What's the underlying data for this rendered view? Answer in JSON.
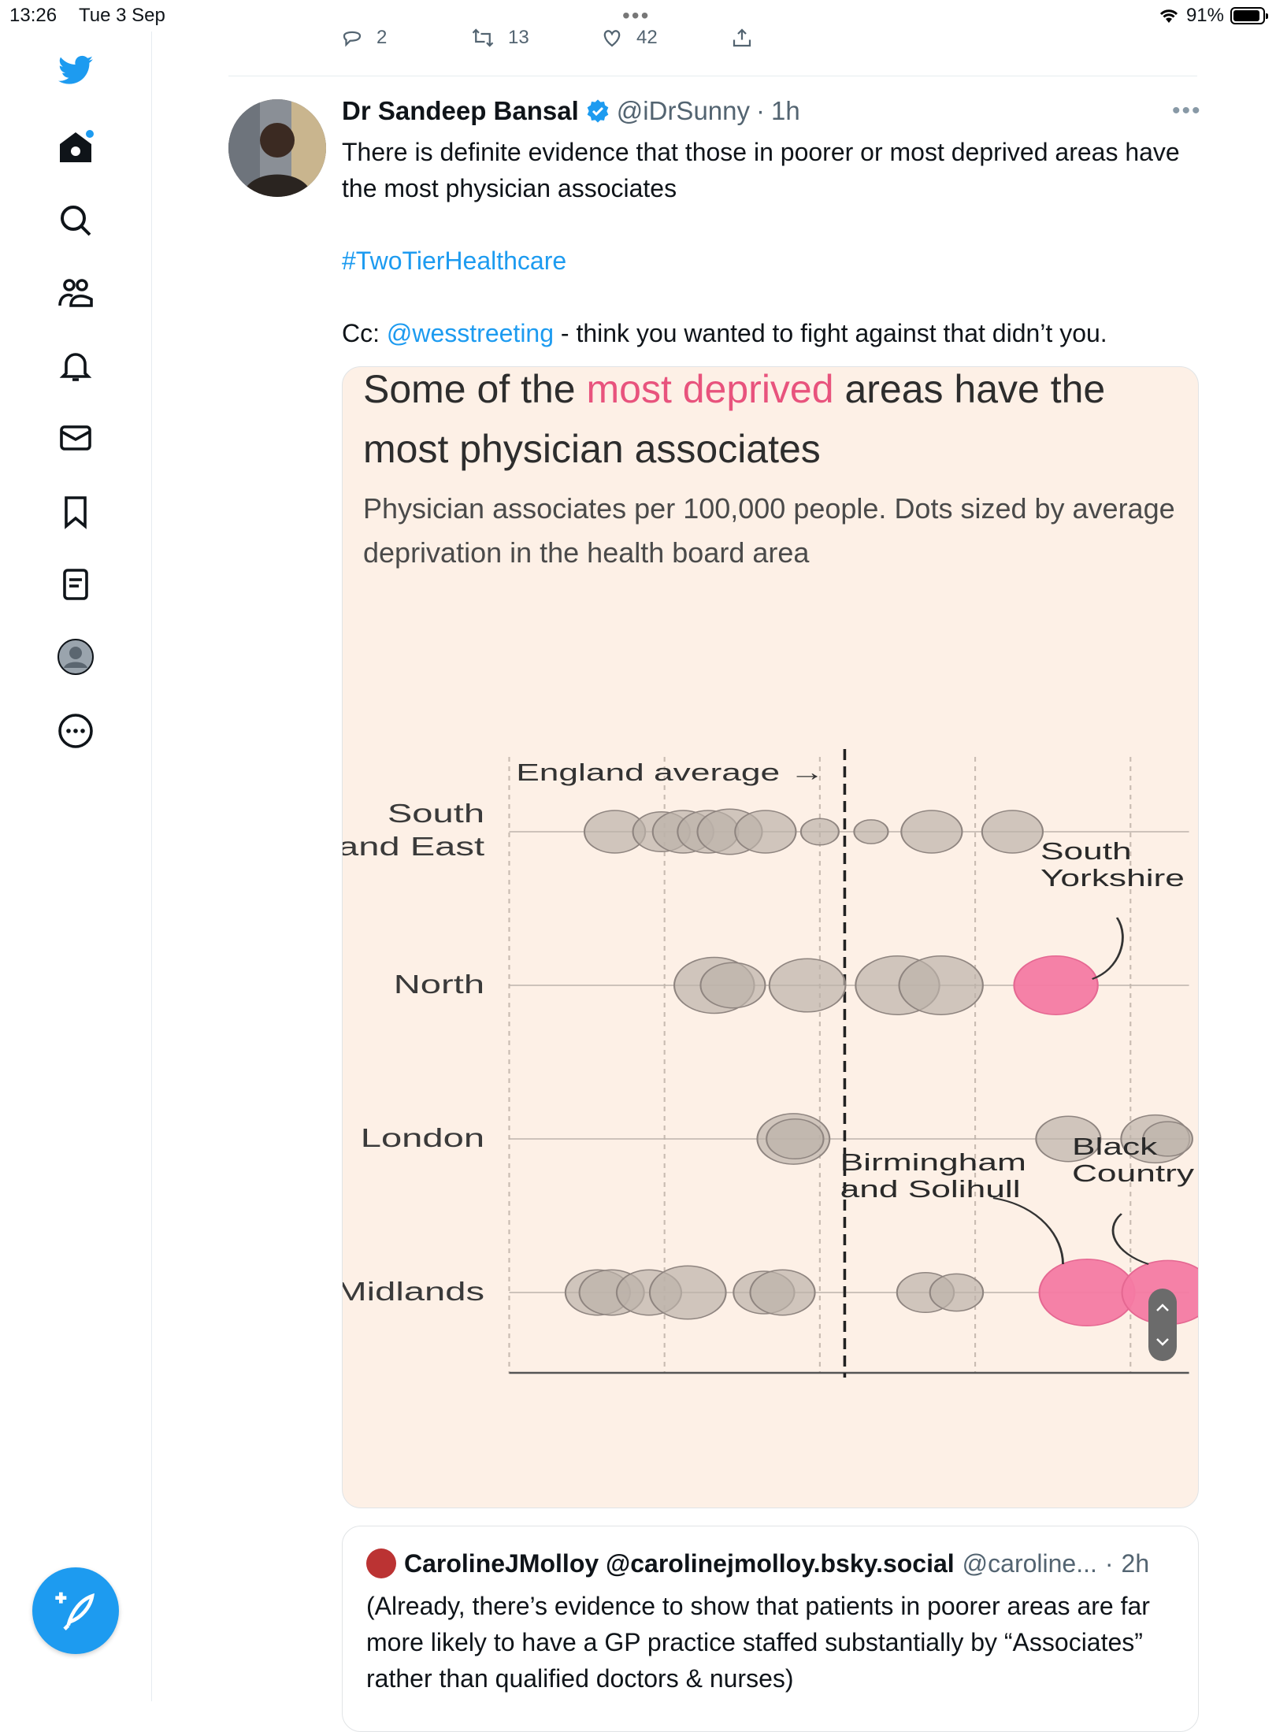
{
  "status": {
    "time": "13:26",
    "date": "Tue 3 Sep",
    "battery": "91%",
    "battery_level": 0.91
  },
  "previous_tweet_actions": {
    "replies": "2",
    "retweets": "13",
    "likes": "42"
  },
  "tweet": {
    "author": "Dr Sandeep Bansal",
    "handle": "@iDrSunny",
    "time": "1h",
    "text_line1": "There is definite evidence that those in poorer or most deprived areas have the most physician associates",
    "hashtag": "#TwoTierHealthcare",
    "cc_prefix": "Cc: ",
    "mention": "@wesstreeting",
    "cc_suffix": " - think you wanted to fight against that didn’t you."
  },
  "card": {
    "title_part1": "Some of the ",
    "title_highlight": "most deprived",
    "title_part2": " areas have the most physician associates",
    "subtitle": "Physician associates per 100,000 people. Dots sized by average deprivation in the health board area"
  },
  "chart_data": {
    "type": "scatter",
    "title": "Some of the most deprived areas have the most physician associates",
    "subtitle": "Physician associates per 100,000 people. Dots sized by average deprivation in the health board area",
    "categories": [
      "South and East",
      "North",
      "London",
      "Midlands"
    ],
    "category_labels": [
      [
        "South",
        "and East"
      ],
      [
        "North"
      ],
      [
        "London"
      ],
      [
        "Midlands"
      ]
    ],
    "x_range": [
      0,
      4.4
    ],
    "gridlines_x": [
      0,
      1,
      2,
      3,
      4
    ],
    "england_average": 2.16,
    "england_average_label": "England average →",
    "highlight_color": "#f47aa3",
    "base_color": "#bcb2aa",
    "points": [
      {
        "category": "South and East",
        "x": 0.68,
        "size": 0.5
      },
      {
        "category": "South and East",
        "x": 0.98,
        "size": 0.45
      },
      {
        "category": "South and East",
        "x": 1.12,
        "size": 0.5
      },
      {
        "category": "South and East",
        "x": 1.28,
        "size": 0.5
      },
      {
        "category": "South and East",
        "x": 1.42,
        "size": 0.55
      },
      {
        "category": "South and East",
        "x": 1.65,
        "size": 0.5
      },
      {
        "category": "South and East",
        "x": 2.0,
        "size": 0.2
      },
      {
        "category": "South and East",
        "x": 2.33,
        "size": 0.15
      },
      {
        "category": "South and East",
        "x": 2.72,
        "size": 0.5
      },
      {
        "category": "South and East",
        "x": 3.24,
        "size": 0.5
      },
      {
        "category": "North",
        "x": 1.32,
        "size": 0.75
      },
      {
        "category": "North",
        "x": 1.44,
        "size": 0.55
      },
      {
        "category": "North",
        "x": 1.92,
        "size": 0.7
      },
      {
        "category": "North",
        "x": 2.5,
        "size": 0.8
      },
      {
        "category": "North",
        "x": 2.78,
        "size": 0.8
      },
      {
        "category": "North",
        "x": 3.52,
        "size": 0.8,
        "highlight": true
      },
      {
        "category": "London",
        "x": 1.83,
        "size": 0.65
      },
      {
        "category": "London",
        "x": 1.84,
        "size": 0.45
      },
      {
        "category": "London",
        "x": 3.6,
        "size": 0.55
      },
      {
        "category": "London",
        "x": 4.16,
        "size": 0.6
      },
      {
        "category": "London",
        "x": 4.24,
        "size": 0.35
      },
      {
        "category": "Midlands",
        "x": 0.57,
        "size": 0.55
      },
      {
        "category": "Midlands",
        "x": 0.66,
        "size": 0.55
      },
      {
        "category": "Midlands",
        "x": 0.9,
        "size": 0.55
      },
      {
        "category": "Midlands",
        "x": 1.15,
        "size": 0.7
      },
      {
        "category": "Midlands",
        "x": 1.64,
        "size": 0.5
      },
      {
        "category": "Midlands",
        "x": 1.76,
        "size": 0.55
      },
      {
        "category": "Midlands",
        "x": 2.68,
        "size": 0.45
      },
      {
        "category": "Midlands",
        "x": 2.88,
        "size": 0.4
      },
      {
        "category": "Midlands",
        "x": 3.72,
        "size": 0.95,
        "highlight": true
      },
      {
        "category": "Midlands",
        "x": 4.24,
        "size": 0.9,
        "highlight": true
      }
    ],
    "annotations": [
      {
        "lines": [
          "South",
          "Yorkshire"
        ],
        "category": "North"
      },
      {
        "lines": [
          "Birmingham",
          "and Solihull"
        ],
        "category": "Midlands"
      },
      {
        "lines": [
          "Black",
          "Country"
        ],
        "category": "Midlands"
      }
    ]
  },
  "quote": {
    "author": "CarolineJMolloy @carolinejmolloy.bsky.social",
    "handle": "@caroline...",
    "time": "2h",
    "text": "(Already, there’s evidence to show that patients in poorer areas are far more likely to have a GP practice staffed substantially by “Associates” rather than qualified doctors & nurses)"
  },
  "icons": [
    "twitter-bird-icon",
    "home-icon",
    "search-icon",
    "communities-icon",
    "bell-icon",
    "mail-icon",
    "bookmark-icon",
    "lists-icon",
    "profile-icon",
    "more-circle-icon",
    "compose-icon"
  ]
}
